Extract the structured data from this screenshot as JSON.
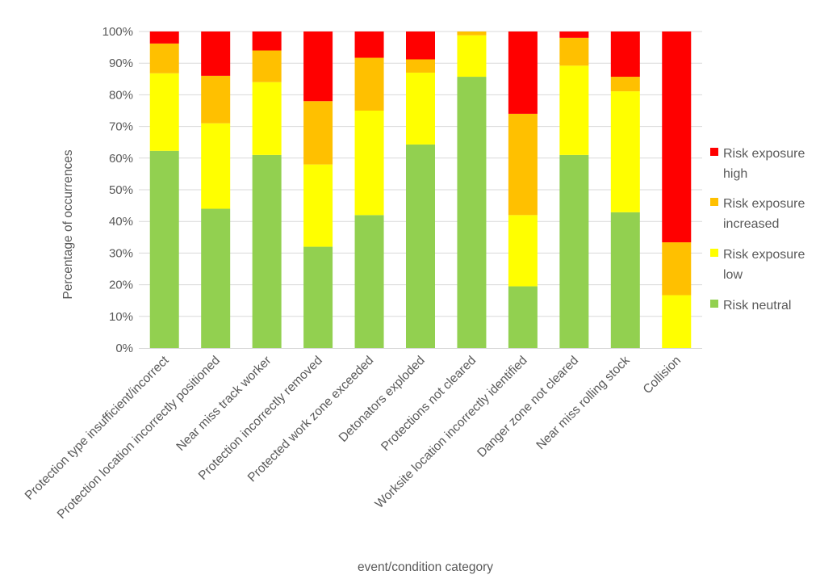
{
  "chart_data": {
    "type": "bar",
    "stacked": true,
    "percent": true,
    "title": "",
    "xlabel": "event/condition category",
    "ylabel": "Percentage of occurrences",
    "ylim": [
      0,
      100
    ],
    "y_ticks": [
      "0%",
      "10%",
      "20%",
      "30%",
      "40%",
      "50%",
      "60%",
      "70%",
      "80%",
      "90%",
      "100%"
    ],
    "grid": true,
    "legend_position": "right",
    "categories": [
      "Protection type insufficient/incorrect",
      "Protection location incorrectly positioned",
      "Near miss track worker",
      "Protection incorrectly removed",
      "Protected work zone exceeded",
      "Detonators exploded",
      "Protections not cleared",
      "Worksite location incorrectly identified",
      "Danger zone not cleared",
      "Near miss rolling stock",
      "Collision"
    ],
    "series": [
      {
        "name": "Risk neutral",
        "legend_lines": [
          "Risk neutral"
        ],
        "color": "#92d050",
        "values": [
          62.3,
          44.0,
          61.0,
          32.0,
          42.0,
          64.3,
          85.7,
          19.5,
          61.0,
          42.9,
          0
        ]
      },
      {
        "name": "Risk exposure low",
        "legend_lines": [
          "Risk exposure",
          "low"
        ],
        "color": "#ffff00",
        "values": [
          24.5,
          27.0,
          23.0,
          26.0,
          33.0,
          22.7,
          13.1,
          22.5,
          28.2,
          38.2,
          16.7
        ]
      },
      {
        "name": "Risk exposure increased",
        "legend_lines": [
          "Risk exposure",
          "increased"
        ],
        "color": "#ffc000",
        "values": [
          9.4,
          15.0,
          10.0,
          20.0,
          16.7,
          4.2,
          1.2,
          32.0,
          8.8,
          4.6,
          16.7
        ]
      },
      {
        "name": "Risk exposure high",
        "legend_lines": [
          "Risk exposure",
          "high"
        ],
        "color": "#ff0000",
        "values": [
          3.8,
          14.0,
          6.0,
          22.0,
          8.3,
          8.8,
          0,
          26.0,
          2.0,
          14.3,
          66.6
        ]
      }
    ]
  }
}
